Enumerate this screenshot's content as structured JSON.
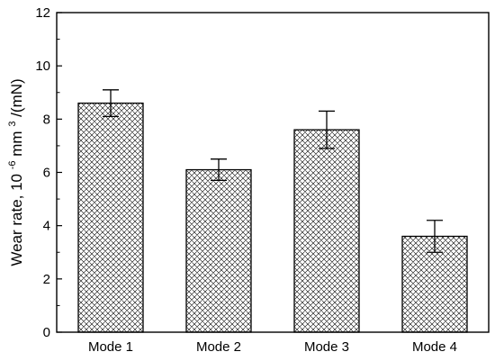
{
  "chart_data": {
    "type": "bar",
    "categories": [
      "Mode 1",
      "Mode 2",
      "Mode 3",
      "Mode 4"
    ],
    "values": [
      8.6,
      6.1,
      7.6,
      3.6
    ],
    "error_low": [
      8.1,
      5.7,
      6.9,
      3.0
    ],
    "error_high": [
      9.1,
      6.5,
      8.3,
      4.2
    ],
    "ylim": [
      0,
      12
    ],
    "yticks": [
      "0",
      "2",
      "4",
      "6",
      "8",
      "10",
      "12"
    ],
    "ylabel": {
      "prefix": "Wear rate, 10",
      "exp1": "-6",
      "mid": "mm",
      "exp2": "3",
      "suffix": "/(mN)"
    },
    "xlabel": "",
    "title": "",
    "grid": false,
    "bar_fill": "crosshatch",
    "bar_color": "#000000"
  }
}
